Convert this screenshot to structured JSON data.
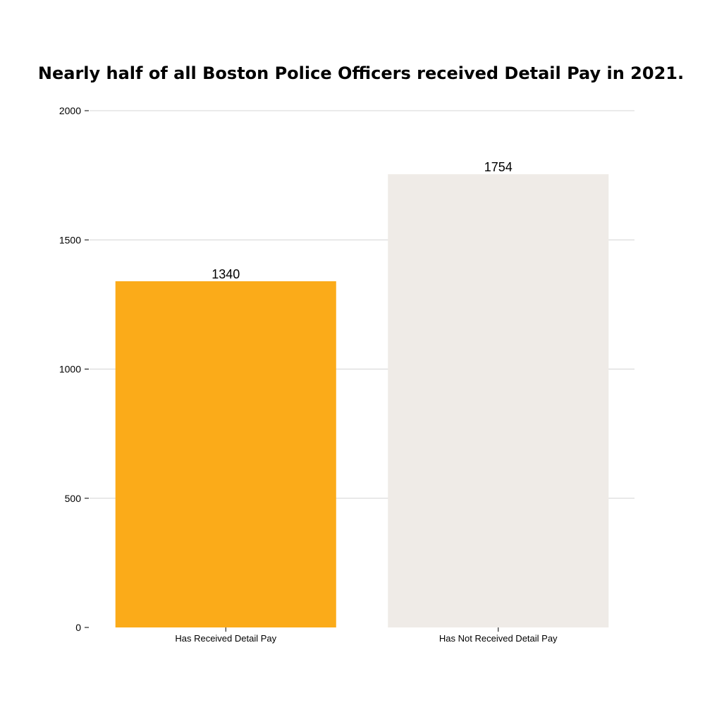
{
  "chart_data": {
    "type": "bar",
    "title": "Nearly half of all Boston Police Officers received Detail Pay in 2021.",
    "categories": [
      "Has Received Detail Pay",
      "Has Not Received Detail Pay"
    ],
    "values": [
      1340,
      1754
    ],
    "data_labels": [
      "1340",
      "1754"
    ],
    "colors": [
      "#fbab19",
      "#efebe7"
    ],
    "ylim": [
      0,
      2000
    ],
    "yticks": [
      0,
      500,
      1000,
      1500,
      2000
    ],
    "ytick_labels": [
      "0",
      "500",
      "1000",
      "1500",
      "2000"
    ],
    "xlabel": "",
    "ylabel": "",
    "grid": "horizontal",
    "gridline_color": "#d4d4d4",
    "legend": "none"
  }
}
